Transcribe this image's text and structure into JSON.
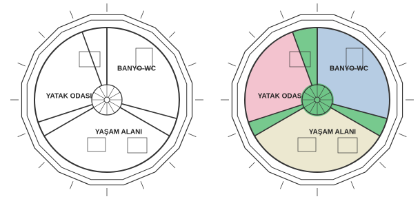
{
  "plans": [
    {
      "labels": {
        "bedroom": "YATAK ODASI",
        "bath": "BANYO-WC",
        "living": "YAŞAM ALANI"
      }
    },
    {
      "labels": {
        "bedroom": "YATAK ODASI",
        "bath": "BANYO-WC",
        "living": "YAŞAM ALANI"
      }
    }
  ]
}
